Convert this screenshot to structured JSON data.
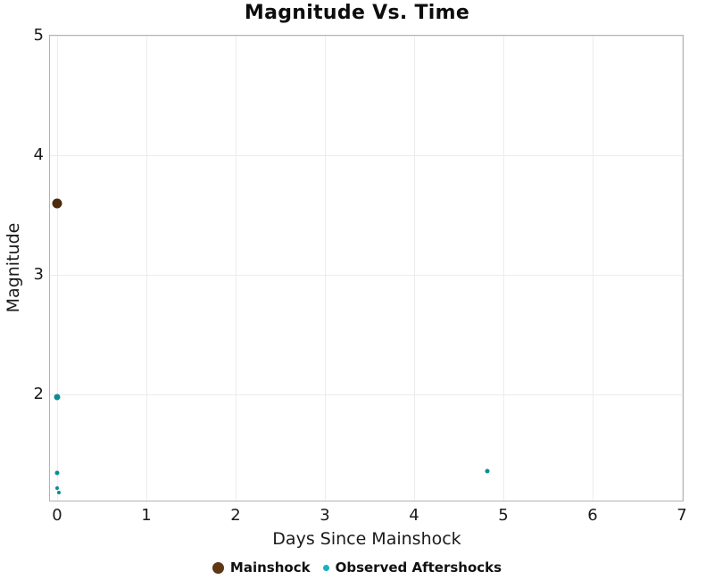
{
  "chart_data": {
    "type": "scatter",
    "title": "Magnitude Vs. Time",
    "xlabel": "Days Since Mainshock",
    "ylabel": "Magnitude",
    "xlim": [
      -0.08,
      7.01
    ],
    "ylim": [
      1.115,
      5
    ],
    "x_ticks": [
      0,
      1,
      2,
      3,
      4,
      5,
      6,
      7
    ],
    "y_ticks": [
      2,
      3,
      4,
      5
    ],
    "grid": true,
    "legend_position": "bottom-center",
    "series": [
      {
        "name": "Mainshock",
        "color": "#4e2b0d",
        "legend_color": "#5e3714",
        "legend_marker_size": 13,
        "points": [
          {
            "x": 0,
            "y": 3.6,
            "size": 11
          }
        ]
      },
      {
        "name": "Observed Aftershocks",
        "color": "#0e8b91",
        "legend_color": "#16b2bf",
        "legend_marker_size": 7,
        "points": [
          {
            "x": 0,
            "y": 1.98,
            "size": 7
          },
          {
            "x": 0,
            "y": 1.35,
            "size": 5
          },
          {
            "x": 0,
            "y": 1.22,
            "size": 4
          },
          {
            "x": 0.02,
            "y": 1.18,
            "size": 4
          },
          {
            "x": 4.82,
            "y": 1.36,
            "size": 5
          }
        ]
      }
    ],
    "style": {
      "grid_color": "#ececec",
      "spine_color": "#b3b3b3",
      "text_color": "#1a1a1a",
      "background": "#ffffff"
    }
  }
}
